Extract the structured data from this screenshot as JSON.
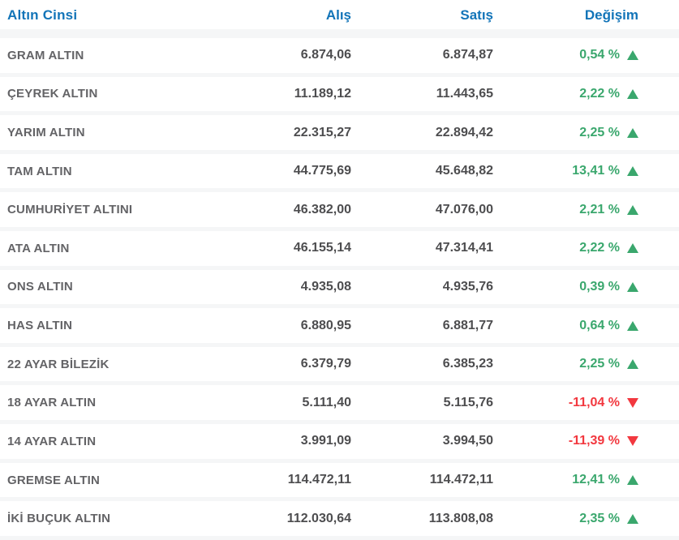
{
  "table": {
    "columns": [
      {
        "label": "Altın Cinsi"
      },
      {
        "label": "Alış"
      },
      {
        "label": "Satış"
      },
      {
        "label": "Değişim"
      }
    ],
    "rows": [
      {
        "name": "GRAM ALTIN",
        "buy": "6.874,06",
        "sell": "6.874,87",
        "change": "0,54 %",
        "direction": "up"
      },
      {
        "name": "ÇEYREK ALTIN",
        "buy": "11.189,12",
        "sell": "11.443,65",
        "change": "2,22 %",
        "direction": "up"
      },
      {
        "name": "YARIM ALTIN",
        "buy": "22.315,27",
        "sell": "22.894,42",
        "change": "2,25 %",
        "direction": "up"
      },
      {
        "name": "TAM ALTIN",
        "buy": "44.775,69",
        "sell": "45.648,82",
        "change": "13,41 %",
        "direction": "up"
      },
      {
        "name": "CUMHURİYET ALTINI",
        "buy": "46.382,00",
        "sell": "47.076,00",
        "change": "2,21 %",
        "direction": "up"
      },
      {
        "name": "ATA ALTIN",
        "buy": "46.155,14",
        "sell": "47.314,41",
        "change": "2,22 %",
        "direction": "up"
      },
      {
        "name": "ONS ALTIN",
        "buy": "4.935,08",
        "sell": "4.935,76",
        "change": "0,39 %",
        "direction": "up"
      },
      {
        "name": "HAS ALTIN",
        "buy": "6.880,95",
        "sell": "6.881,77",
        "change": "0,64 %",
        "direction": "up"
      },
      {
        "name": "22 AYAR BİLEZİK",
        "buy": "6.379,79",
        "sell": "6.385,23",
        "change": "2,25 %",
        "direction": "up"
      },
      {
        "name": "18 AYAR ALTIN",
        "buy": "5.111,40",
        "sell": "5.115,76",
        "change": "-11,04 %",
        "direction": "down"
      },
      {
        "name": "14 AYAR ALTIN",
        "buy": "3.991,09",
        "sell": "3.994,50",
        "change": "-11,39 %",
        "direction": "down"
      },
      {
        "name": "GREMSE ALTIN",
        "buy": "114.472,11",
        "sell": "114.472,11",
        "change": "12,41 %",
        "direction": "up"
      },
      {
        "name": "İKİ BUÇUK ALTIN",
        "buy": "112.030,64",
        "sell": "113.808,08",
        "change": "2,35 %",
        "direction": "up"
      }
    ]
  },
  "colors": {
    "header_text": "#1274b8",
    "label_text": "#636366",
    "value_text": "#4d4d4f",
    "change_up": "#3aa76d",
    "change_down": "#f2383f",
    "row_separator": "#f5f6f7",
    "row_background": "#ffffff"
  }
}
